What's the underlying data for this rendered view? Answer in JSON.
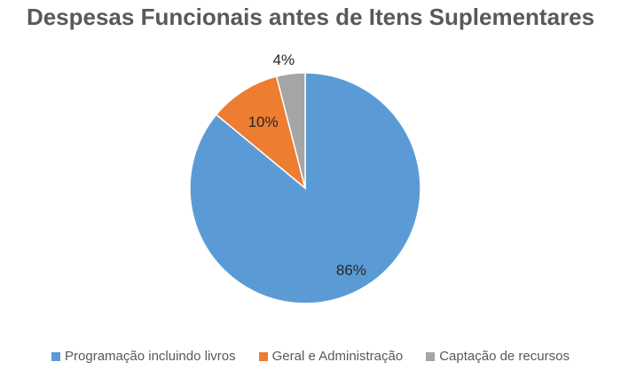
{
  "chart_data": {
    "type": "pie",
    "title": "Despesas Funcionais antes de Itens Suplementares",
    "slices": [
      {
        "label": "Programação incluindo livros",
        "value": 86,
        "display": "86%",
        "color": "#5B9BD5"
      },
      {
        "label": "Geral e Administração",
        "value": 10,
        "display": "10%",
        "color": "#ED7D31"
      },
      {
        "label": "Captação de recursos",
        "value": 4,
        "display": "4%",
        "color": "#A5A5A5"
      }
    ],
    "legend_position": "bottom"
  }
}
